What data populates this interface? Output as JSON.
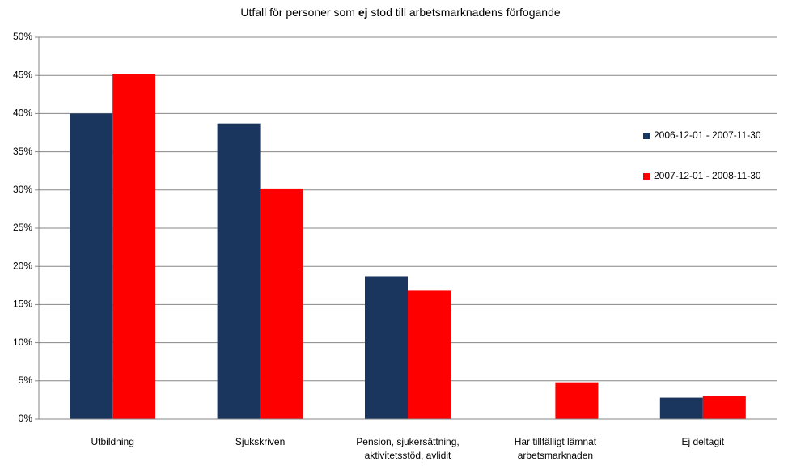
{
  "chart_data": {
    "type": "bar",
    "title_parts": [
      "Utfall för personer som ",
      "ej",
      " stod till arbetsmarknadens förfogande"
    ],
    "categories": [
      "Utbildning",
      "Sjukskriven",
      "Pension, sjukersättning, aktivitetsstöd, avlidit",
      "Har tillfälligt lämnat arbetsmarknaden",
      "Ej deltagit"
    ],
    "series": [
      {
        "name": "2006-12-01 - 2007-11-30",
        "color": "#1a355e",
        "values": [
          40.0,
          38.7,
          18.7,
          0,
          2.8
        ]
      },
      {
        "name": "2007-12-01 - 2008-11-30",
        "color": "#ff0000",
        "values": [
          45.2,
          30.2,
          16.8,
          4.8,
          3.0
        ]
      }
    ],
    "ylim": [
      0,
      50
    ],
    "yticks": [
      {
        "value": 0,
        "label": "0%"
      },
      {
        "value": 5,
        "label": "5%"
      },
      {
        "value": 10,
        "label": "10%"
      },
      {
        "value": 15,
        "label": "15%"
      },
      {
        "value": 20,
        "label": "20%"
      },
      {
        "value": 25,
        "label": "25%"
      },
      {
        "value": 30,
        "label": "30%"
      },
      {
        "value": 35,
        "label": "35%"
      },
      {
        "value": 40,
        "label": "40%"
      },
      {
        "value": 45,
        "label": "45%"
      },
      {
        "value": 50,
        "label": "50%"
      }
    ],
    "grid": true,
    "legend": "right"
  }
}
